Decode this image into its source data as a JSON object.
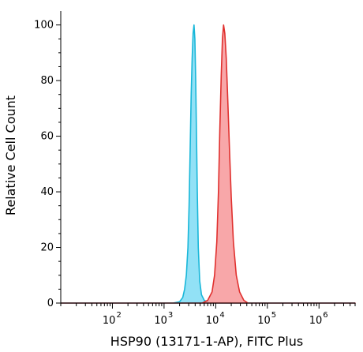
{
  "chart_data": {
    "type": "area",
    "xlabel": "HSP90 (13171-1-AP), FITC Plus",
    "ylabel": "Relative Cell Count",
    "x_scale": "log",
    "xlim": [
      10,
      5000000
    ],
    "ylim": [
      0,
      105
    ],
    "y_ticks": [
      0,
      20,
      40,
      60,
      80,
      100
    ],
    "x_ticks": [
      {
        "value": 100,
        "base": "10",
        "exp": "2"
      },
      {
        "value": 1000,
        "base": "10",
        "exp": "3"
      },
      {
        "value": 10000,
        "base": "10",
        "exp": "4"
      },
      {
        "value": 100000,
        "base": "10",
        "exp": "5"
      },
      {
        "value": 1000000,
        "base": "10",
        "exp": "6"
      }
    ],
    "grid": false,
    "series": [
      {
        "fill": "#7fdcf5",
        "stroke": "#19b7d9",
        "points": [
          [
            10,
            0
          ],
          [
            1500,
            0
          ],
          [
            2000,
            0.5
          ],
          [
            2300,
            2
          ],
          [
            2500,
            5
          ],
          [
            2700,
            10
          ],
          [
            2900,
            20
          ],
          [
            3050,
            35
          ],
          [
            3200,
            55
          ],
          [
            3350,
            75
          ],
          [
            3500,
            88
          ],
          [
            3650,
            97
          ],
          [
            3800,
            100
          ],
          [
            3950,
            95
          ],
          [
            4100,
            80
          ],
          [
            4250,
            60
          ],
          [
            4400,
            40
          ],
          [
            4600,
            20
          ],
          [
            4900,
            8
          ],
          [
            5300,
            3
          ],
          [
            6000,
            1
          ],
          [
            7500,
            0
          ],
          [
            5000000,
            0
          ]
        ]
      },
      {
        "fill": "#f7989a",
        "stroke": "#e0302e",
        "points": [
          [
            10,
            0
          ],
          [
            5500,
            0
          ],
          [
            7000,
            1
          ],
          [
            8500,
            4
          ],
          [
            9500,
            10
          ],
          [
            10500,
            22
          ],
          [
            11300,
            40
          ],
          [
            12000,
            62
          ],
          [
            12800,
            82
          ],
          [
            13500,
            95
          ],
          [
            14200,
            100
          ],
          [
            15000,
            97
          ],
          [
            16000,
            88
          ],
          [
            17200,
            72
          ],
          [
            18500,
            55
          ],
          [
            20000,
            38
          ],
          [
            22000,
            22
          ],
          [
            25000,
            10
          ],
          [
            29000,
            4
          ],
          [
            35000,
            1
          ],
          [
            42000,
            0
          ],
          [
            5000000,
            0
          ]
        ]
      }
    ]
  }
}
